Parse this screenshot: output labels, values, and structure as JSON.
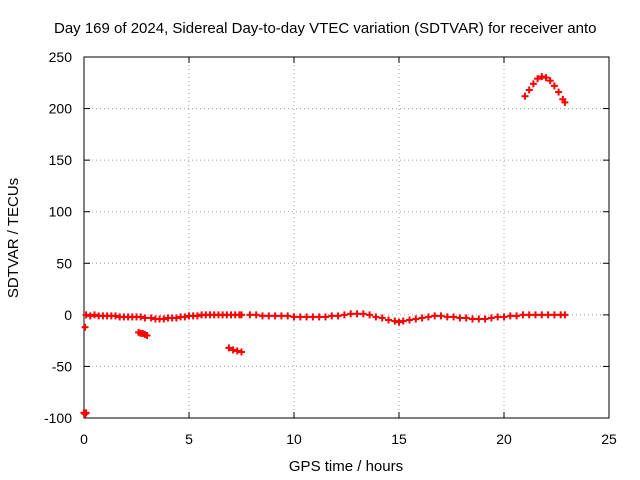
{
  "chart_data": {
    "type": "scatter",
    "title": "Day 169 of 2024, Sidereal Day-to-day VTEC variation (SDTVAR) for receiver anto",
    "xlabel": "GPS time / hours",
    "ylabel": "SDTVAR / TECUs",
    "xlim": [
      0,
      25
    ],
    "ylim": [
      -100,
      250
    ],
    "xticks": [
      0,
      5,
      10,
      15,
      20,
      25
    ],
    "yticks": [
      -100,
      -50,
      0,
      50,
      100,
      150,
      200,
      250
    ],
    "grid": true,
    "marker": "+",
    "color": "#ff0000",
    "series": [
      {
        "name": "SDTVAR",
        "points": [
          [
            0.0,
            -95
          ],
          [
            0.05,
            -96
          ],
          [
            0.1,
            -95
          ],
          [
            0.05,
            -12
          ],
          [
            0.1,
            0
          ],
          [
            0.3,
            -1
          ],
          [
            0.5,
            0
          ],
          [
            0.7,
            -1
          ],
          [
            0.9,
            -1
          ],
          [
            1.1,
            -1
          ],
          [
            1.3,
            -1
          ],
          [
            1.5,
            -1
          ],
          [
            1.7,
            -2
          ],
          [
            1.9,
            -2
          ],
          [
            2.1,
            -2
          ],
          [
            2.3,
            -2
          ],
          [
            2.5,
            -2
          ],
          [
            2.7,
            -2
          ],
          [
            2.9,
            -3
          ],
          [
            2.6,
            -17
          ],
          [
            2.7,
            -18
          ],
          [
            2.8,
            -18
          ],
          [
            2.9,
            -19
          ],
          [
            3.0,
            -20
          ],
          [
            3.2,
            -3
          ],
          [
            3.4,
            -4
          ],
          [
            3.6,
            -4
          ],
          [
            3.8,
            -4
          ],
          [
            4.0,
            -3
          ],
          [
            4.2,
            -3
          ],
          [
            4.4,
            -3
          ],
          [
            4.6,
            -2
          ],
          [
            4.8,
            -2
          ],
          [
            5.0,
            -1
          ],
          [
            5.2,
            -1
          ],
          [
            5.4,
            -1
          ],
          [
            5.6,
            0
          ],
          [
            5.8,
            0
          ],
          [
            6.0,
            0
          ],
          [
            6.2,
            0
          ],
          [
            6.4,
            0
          ],
          [
            6.6,
            0
          ],
          [
            6.8,
            0
          ],
          [
            7.0,
            0
          ],
          [
            7.2,
            0
          ],
          [
            7.4,
            0
          ],
          [
            7.5,
            0
          ],
          [
            6.9,
            -32
          ],
          [
            7.1,
            -34
          ],
          [
            7.3,
            -35
          ],
          [
            7.5,
            -36
          ],
          [
            7.9,
            0
          ],
          [
            8.2,
            0
          ],
          [
            8.5,
            -1
          ],
          [
            8.8,
            -1
          ],
          [
            9.1,
            -1
          ],
          [
            9.4,
            -1
          ],
          [
            9.7,
            -1
          ],
          [
            10.0,
            -2
          ],
          [
            10.3,
            -2
          ],
          [
            10.6,
            -2
          ],
          [
            10.9,
            -2
          ],
          [
            11.2,
            -2
          ],
          [
            11.5,
            -2
          ],
          [
            11.8,
            -1
          ],
          [
            12.1,
            -1
          ],
          [
            12.4,
            0
          ],
          [
            12.7,
            1
          ],
          [
            13.0,
            1
          ],
          [
            13.3,
            1
          ],
          [
            13.6,
            0
          ],
          [
            13.9,
            -2
          ],
          [
            14.2,
            -3
          ],
          [
            14.5,
            -5
          ],
          [
            14.8,
            -6
          ],
          [
            15.0,
            -7
          ],
          [
            15.2,
            -6
          ],
          [
            15.5,
            -5
          ],
          [
            15.8,
            -4
          ],
          [
            16.1,
            -3
          ],
          [
            16.4,
            -2
          ],
          [
            16.7,
            -1
          ],
          [
            17.0,
            -1
          ],
          [
            17.3,
            -2
          ],
          [
            17.6,
            -2
          ],
          [
            17.9,
            -3
          ],
          [
            18.2,
            -3
          ],
          [
            18.5,
            -4
          ],
          [
            18.8,
            -4
          ],
          [
            19.1,
            -4
          ],
          [
            19.4,
            -3
          ],
          [
            19.7,
            -2
          ],
          [
            20.0,
            -2
          ],
          [
            20.3,
            -1
          ],
          [
            20.6,
            -1
          ],
          [
            20.9,
            0
          ],
          [
            21.2,
            0
          ],
          [
            21.5,
            0
          ],
          [
            21.8,
            0
          ],
          [
            22.1,
            0
          ],
          [
            22.4,
            0
          ],
          [
            22.7,
            0
          ],
          [
            22.9,
            0
          ],
          [
            21.0,
            212
          ],
          [
            21.2,
            218
          ],
          [
            21.4,
            224
          ],
          [
            21.6,
            229
          ],
          [
            21.8,
            231
          ],
          [
            22.0,
            230
          ],
          [
            22.2,
            227
          ],
          [
            22.4,
            222
          ],
          [
            22.6,
            216
          ],
          [
            22.8,
            209
          ],
          [
            22.9,
            206
          ]
        ]
      }
    ]
  }
}
